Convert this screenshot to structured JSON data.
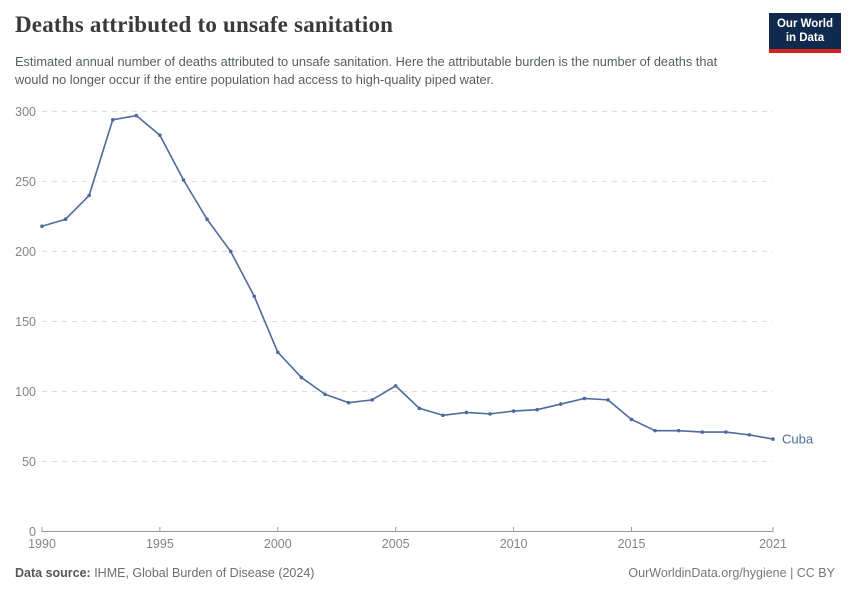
{
  "header": {
    "title": "Deaths attributed to unsafe sanitation",
    "subtitle": "Estimated annual number of deaths attributed to unsafe sanitation. Here the attributable burden is the number of deaths that would no longer occur if the entire population had access to high-quality piped water.",
    "logo": {
      "line1": "Our World",
      "line2": "in Data"
    }
  },
  "chart_data": {
    "type": "line",
    "title": "Deaths attributed to unsafe sanitation",
    "series": [
      {
        "name": "Cuba",
        "x": [
          1990,
          1991,
          1992,
          1993,
          1994,
          1995,
          1996,
          1997,
          1998,
          1999,
          2000,
          2001,
          2002,
          2003,
          2004,
          2005,
          2006,
          2007,
          2008,
          2009,
          2010,
          2011,
          2012,
          2013,
          2014,
          2015,
          2016,
          2017,
          2018,
          2019,
          2020,
          2021
        ],
        "values": [
          218,
          223,
          240,
          294,
          297,
          283,
          251,
          223,
          200,
          168,
          128,
          110,
          98,
          92,
          94,
          104,
          88,
          83,
          85,
          84,
          86,
          87,
          91,
          95,
          94,
          80,
          72,
          72,
          71,
          71,
          69,
          66
        ]
      }
    ],
    "entity_label": "Cuba",
    "xlabel": "",
    "ylabel": "",
    "ylim": [
      0,
      300
    ],
    "yticks": [
      0,
      50,
      100,
      150,
      200,
      250,
      300
    ],
    "xticks": [
      1990,
      1995,
      2000,
      2005,
      2010,
      2015,
      2021
    ],
    "xlim": [
      1990,
      2021
    ],
    "grid": "horizontal-dashed",
    "legend_position": "end-of-line-label"
  },
  "colors": {
    "line": "#4c6a9c",
    "entity_label": "#4c6a9c",
    "gridline": "#dcdcdc",
    "axis": "#999999",
    "tick_label": "#858585",
    "logo_bg": "#102a4d",
    "logo_red": "#cf2420"
  },
  "footer": {
    "datasource_label": "Data source:",
    "datasource_value": " IHME, Global Burden of Disease (2024)",
    "credit": "OurWorldinData.org/hygiene | CC BY"
  }
}
